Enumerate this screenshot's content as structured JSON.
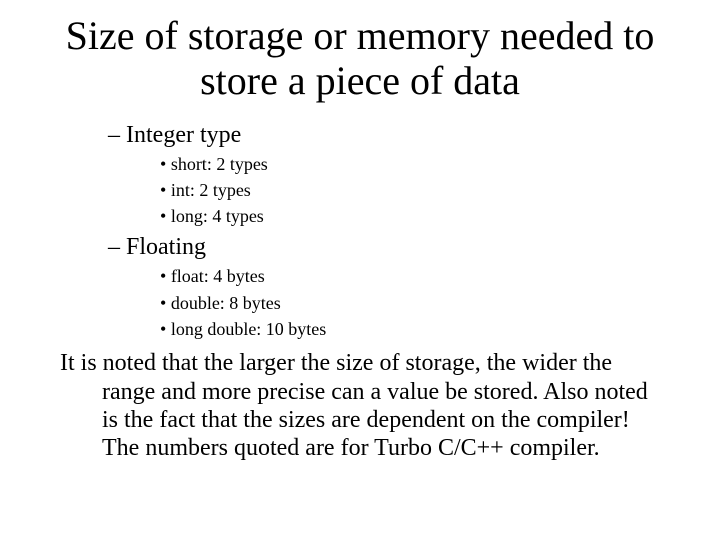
{
  "title": "Size of storage or memory needed to store a piece of data",
  "sections": [
    {
      "heading": "Integer type",
      "items": [
        "short: 2 types",
        "int: 2 types",
        "long: 4 types"
      ]
    },
    {
      "heading": "Floating",
      "items": [
        "float:   4 bytes",
        "double: 8 bytes",
        "long double: 10 bytes"
      ]
    }
  ],
  "note": "It is noted that the larger the size of storage, the wider the range and more precise can a value be stored. Also noted is the fact that the sizes are dependent on the compiler! The numbers quoted are for Turbo C/C++ compiler.",
  "colors": {
    "background": "#ffffff",
    "text": "#000000"
  },
  "typography": {
    "family": "Times New Roman",
    "title_size_pt": 40,
    "dash_size_pt": 24,
    "bullet_size_pt": 18,
    "paragraph_size_pt": 24
  }
}
